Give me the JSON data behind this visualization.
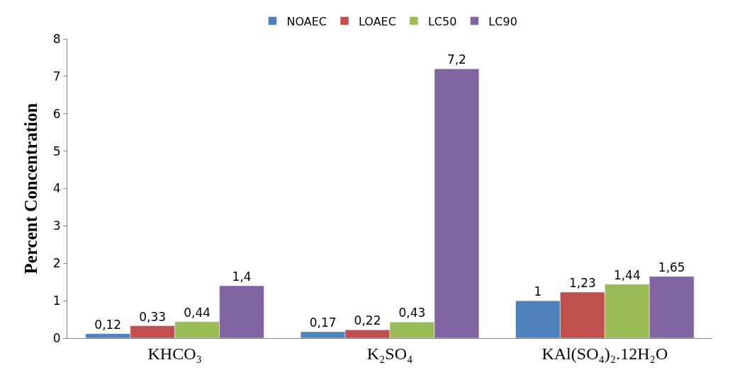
{
  "chart_data": {
    "type": "bar",
    "ylabel": "Percent Concentration",
    "categories": [
      "KHCO₃",
      "K₂SO₄",
      "KAl(SO₄)₂.12H₂O"
    ],
    "series": [
      {
        "name": "NOAEC",
        "color": "#4f81bd",
        "values": [
          0.12,
          0.17,
          1
        ],
        "value_labels": [
          "0,12",
          "0,17",
          "1"
        ]
      },
      {
        "name": "LOAEC",
        "color": "#c0504d",
        "values": [
          0.33,
          0.22,
          1.23
        ],
        "value_labels": [
          "0,33",
          "0,22",
          "1,23"
        ]
      },
      {
        "name": "LC50",
        "color": "#9bbb59",
        "values": [
          0.44,
          0.43,
          1.44
        ],
        "value_labels": [
          "0,44",
          "0,43",
          "1,44"
        ]
      },
      {
        "name": "LC90",
        "color": "#8064a2",
        "values": [
          1.4,
          7.2,
          1.65
        ],
        "value_labels": [
          "1,4",
          "7,2",
          "1,65"
        ]
      }
    ],
    "ylim": [
      0,
      8
    ],
    "yticks": [
      0,
      1,
      2,
      3,
      4,
      5,
      6,
      7,
      8
    ],
    "legend": "top",
    "grid": false
  }
}
